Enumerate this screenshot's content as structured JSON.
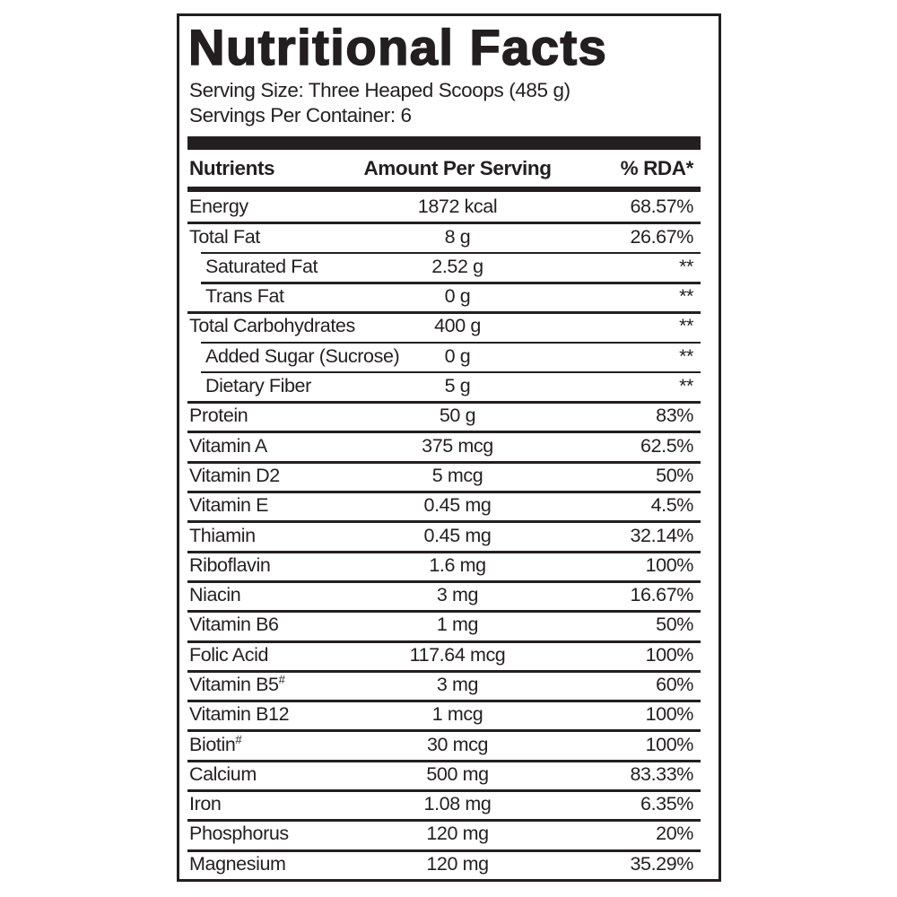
{
  "colors": {
    "ink": "#231f20",
    "background": "#ffffff"
  },
  "label": {
    "title": "Nutritional Facts",
    "serving_size": "Serving Size: Three Heaped Scoops (485 g)",
    "servings_per_container": "Servings Per Container: 6",
    "columns": {
      "nutrient": "Nutrients",
      "amount": "Amount Per Serving",
      "rda": "% RDA*"
    },
    "rows": [
      {
        "nutrient": "Energy",
        "amount": "1872 kcal",
        "rda": "68.57%",
        "indent": false
      },
      {
        "nutrient": "Total Fat",
        "amount": "8 g",
        "rda": "26.67%",
        "indent": false
      },
      {
        "nutrient": "Saturated Fat",
        "amount": "2.52 g",
        "rda": "**",
        "indent": true
      },
      {
        "nutrient": "Trans Fat",
        "amount": "0 g",
        "rda": "**",
        "indent": true
      },
      {
        "nutrient": "Total Carbohydrates",
        "amount": "400 g",
        "rda": "**",
        "indent": false
      },
      {
        "nutrient": "Added Sugar (Sucrose)",
        "amount": "0 g",
        "rda": "**",
        "indent": true
      },
      {
        "nutrient": "Dietary Fiber",
        "amount": "5 g",
        "rda": "**",
        "indent": true
      },
      {
        "nutrient": "Protein",
        "amount": "50 g",
        "rda": "83%",
        "indent": false
      },
      {
        "nutrient": "Vitamin A",
        "amount": "375 mcg",
        "rda": "62.5%",
        "indent": false
      },
      {
        "nutrient": "Vitamin D2",
        "amount": "5 mcg",
        "rda": "50%",
        "indent": false
      },
      {
        "nutrient": "Vitamin E",
        "amount": "0.45 mg",
        "rda": "4.5%",
        "indent": false
      },
      {
        "nutrient": "Thiamin",
        "amount": "0.45 mg",
        "rda": "32.14%",
        "indent": false
      },
      {
        "nutrient": "Riboflavin",
        "amount": "1.6 mg",
        "rda": "100%",
        "indent": false
      },
      {
        "nutrient": "Niacin",
        "amount": "3 mg",
        "rda": "16.67%",
        "indent": false
      },
      {
        "nutrient": "Vitamin B6",
        "amount": "1 mg",
        "rda": "50%",
        "indent": false
      },
      {
        "nutrient": "Folic Acid",
        "amount": "117.64 mcg",
        "rda": "100%",
        "indent": false
      },
      {
        "nutrient": "Vitamin B5",
        "sup": "#",
        "amount": "3 mg",
        "rda": "60%",
        "indent": false
      },
      {
        "nutrient": "Vitamin B12",
        "amount": "1 mcg",
        "rda": "100%",
        "indent": false
      },
      {
        "nutrient": "Biotin",
        "sup": "#",
        "amount": "30 mcg",
        "rda": "100%",
        "indent": false
      },
      {
        "nutrient": "Calcium",
        "amount": "500 mg",
        "rda": "83.33%",
        "indent": false
      },
      {
        "nutrient": "Iron",
        "amount": "1.08 mg",
        "rda": "6.35%",
        "indent": false
      },
      {
        "nutrient": "Phosphorus",
        "amount": "120 mg",
        "rda": "20%",
        "indent": false
      },
      {
        "nutrient": "Magnesium",
        "amount": "120 mg",
        "rda": "35.29%",
        "indent": false
      }
    ]
  }
}
